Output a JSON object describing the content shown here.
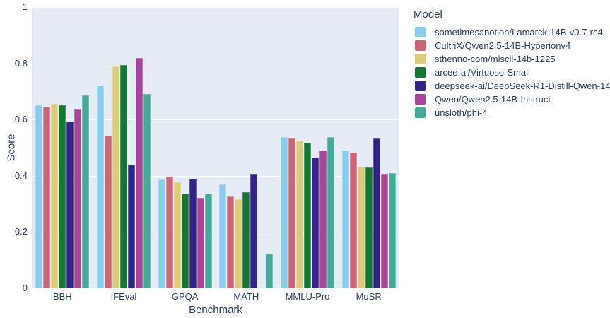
{
  "colors": {
    "paper_bg": "#FFFFFF",
    "plot_bg": "#E5ECF6",
    "grid": "#FFFFFF",
    "text": "#2A3F5F"
  },
  "chart_data": {
    "type": "bar",
    "mode": "grouped",
    "title": "",
    "xlabel": "Benchmark",
    "ylabel": "Score",
    "legend_title": "Model",
    "legend_position": "right",
    "grid": true,
    "ylim": [
      0,
      1
    ],
    "yticks": [
      0,
      0.2,
      0.4,
      0.6,
      0.8,
      1
    ],
    "yticklabels": [
      "0",
      "0.2",
      "0.4",
      "0.6",
      "0.8",
      "1"
    ],
    "categories": [
      "BBH",
      "IFEval",
      "GPQA",
      "MATH",
      "MMLU-Pro",
      "MuSR"
    ],
    "series": [
      {
        "name": "sometimesanotion/Lamarck-14B-v0.7-rc4",
        "color": "#88CCEE",
        "values": [
          0.65,
          0.722,
          0.387,
          0.369,
          0.538,
          0.49
        ]
      },
      {
        "name": "CultriX/Qwen2.5-14B-Hyperionv4",
        "color": "#CC6677",
        "values": [
          0.646,
          0.542,
          0.397,
          0.328,
          0.536,
          0.483
        ]
      },
      {
        "name": "sthenno-com/miscii-14b-1225",
        "color": "#DDCC77",
        "values": [
          0.657,
          0.79,
          0.377,
          0.316,
          0.526,
          0.433
        ]
      },
      {
        "name": "arcee-ai/Virtuoso-Small",
        "color": "#117733",
        "values": [
          0.651,
          0.795,
          0.337,
          0.343,
          0.517,
          0.431
        ]
      },
      {
        "name": "deepseek-ai/DeepSeek-R1-Distill-Qwen-14B",
        "color": "#332288",
        "values": [
          0.593,
          0.44,
          0.389,
          0.408,
          0.465,
          0.535
        ]
      },
      {
        "name": "Qwen/Qwen2.5-14B-Instruct",
        "color": "#AA4499",
        "values": [
          0.639,
          0.818,
          0.322,
          0.0,
          0.489,
          0.407
        ]
      },
      {
        "name": "unsloth/phi-4",
        "color": "#44AA99",
        "values": [
          0.687,
          0.69,
          0.337,
          0.124,
          0.538,
          0.41
        ]
      }
    ]
  }
}
